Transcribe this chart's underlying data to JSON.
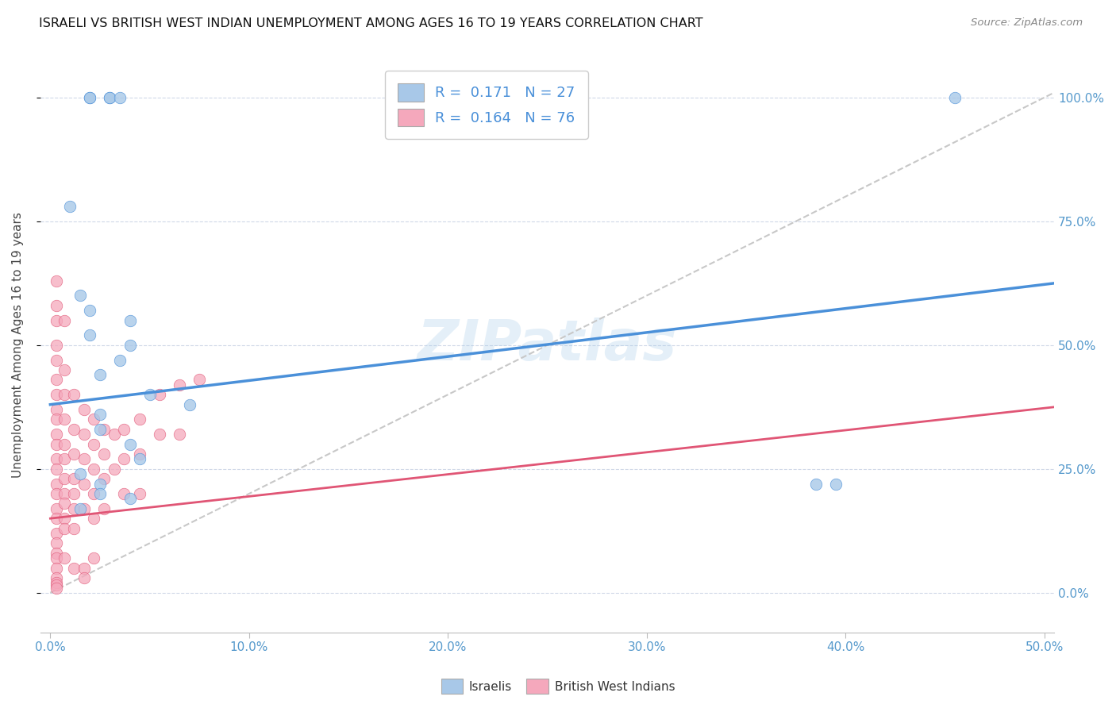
{
  "title": "ISRAELI VS BRITISH WEST INDIAN UNEMPLOYMENT AMONG AGES 16 TO 19 YEARS CORRELATION CHART",
  "source": "Source: ZipAtlas.com",
  "ylabel": "Unemployment Among Ages 16 to 19 years",
  "xlim": [
    -0.005,
    0.505
  ],
  "ylim": [
    -0.08,
    1.08
  ],
  "x_ticks": [
    0.0,
    0.1,
    0.2,
    0.3,
    0.4,
    0.5
  ],
  "x_tick_labels": [
    "0.0%",
    "10.0%",
    "20.0%",
    "30.0%",
    "40.0%",
    "50.0%"
  ],
  "y_ticks": [
    0.0,
    0.25,
    0.5,
    0.75,
    1.0
  ],
  "y_tick_labels": [
    "0.0%",
    "25.0%",
    "50.0%",
    "75.0%",
    "100.0%"
  ],
  "israelis_R": "0.171",
  "israelis_N": "27",
  "bwi_R": "0.164",
  "bwi_N": "76",
  "israeli_color": "#a8c8e8",
  "bwi_color": "#f5a8bc",
  "trend_israeli_color": "#4a90d9",
  "trend_bwi_color": "#e05575",
  "trend_ref_color": "#c8c8c8",
  "watermark": "ZIPatlas",
  "isr_trend_x0": 0.0,
  "isr_trend_x1": 0.505,
  "isr_trend_y0": 0.38,
  "isr_trend_y1": 0.625,
  "bwi_trend_x0": 0.0,
  "bwi_trend_x1": 0.505,
  "bwi_trend_y0": 0.15,
  "bwi_trend_y1": 0.375,
  "israelis_x": [
    0.02,
    0.03,
    0.03,
    0.035,
    0.02,
    0.01,
    0.015,
    0.02,
    0.04,
    0.02,
    0.04,
    0.035,
    0.025,
    0.05,
    0.07,
    0.025,
    0.025,
    0.04,
    0.045,
    0.015,
    0.025,
    0.385,
    0.395,
    0.025,
    0.04,
    0.015,
    0.455
  ],
  "israelis_y": [
    1.0,
    1.0,
    1.0,
    1.0,
    1.0,
    0.78,
    0.6,
    0.57,
    0.55,
    0.52,
    0.5,
    0.47,
    0.44,
    0.4,
    0.38,
    0.36,
    0.33,
    0.3,
    0.27,
    0.24,
    0.22,
    0.22,
    0.22,
    0.2,
    0.19,
    0.17,
    1.0
  ],
  "bwi_x": [
    0.003,
    0.003,
    0.003,
    0.003,
    0.003,
    0.003,
    0.003,
    0.003,
    0.003,
    0.003,
    0.003,
    0.003,
    0.003,
    0.003,
    0.003,
    0.003,
    0.003,
    0.003,
    0.003,
    0.003,
    0.007,
    0.007,
    0.007,
    0.007,
    0.007,
    0.007,
    0.007,
    0.007,
    0.007,
    0.007,
    0.012,
    0.012,
    0.012,
    0.012,
    0.012,
    0.012,
    0.012,
    0.017,
    0.017,
    0.017,
    0.017,
    0.017,
    0.022,
    0.022,
    0.022,
    0.022,
    0.022,
    0.027,
    0.027,
    0.027,
    0.027,
    0.032,
    0.032,
    0.037,
    0.037,
    0.037,
    0.045,
    0.045,
    0.045,
    0.055,
    0.055,
    0.065,
    0.065,
    0.075,
    0.007,
    0.003,
    0.003,
    0.003,
    0.003,
    0.003,
    0.003,
    0.007,
    0.012,
    0.017,
    0.017,
    0.022
  ],
  "bwi_y": [
    0.63,
    0.58,
    0.55,
    0.5,
    0.47,
    0.43,
    0.4,
    0.37,
    0.35,
    0.32,
    0.3,
    0.27,
    0.25,
    0.22,
    0.2,
    0.17,
    0.15,
    0.12,
    0.1,
    0.08,
    0.45,
    0.4,
    0.35,
    0.3,
    0.27,
    0.23,
    0.2,
    0.18,
    0.15,
    0.13,
    0.4,
    0.33,
    0.28,
    0.23,
    0.2,
    0.17,
    0.13,
    0.37,
    0.32,
    0.27,
    0.22,
    0.17,
    0.35,
    0.3,
    0.25,
    0.2,
    0.15,
    0.33,
    0.28,
    0.23,
    0.17,
    0.32,
    0.25,
    0.33,
    0.27,
    0.2,
    0.35,
    0.28,
    0.2,
    0.4,
    0.32,
    0.42,
    0.32,
    0.43,
    0.55,
    0.07,
    0.05,
    0.03,
    0.02,
    0.015,
    0.01,
    0.07,
    0.05,
    0.05,
    0.03,
    0.07
  ]
}
